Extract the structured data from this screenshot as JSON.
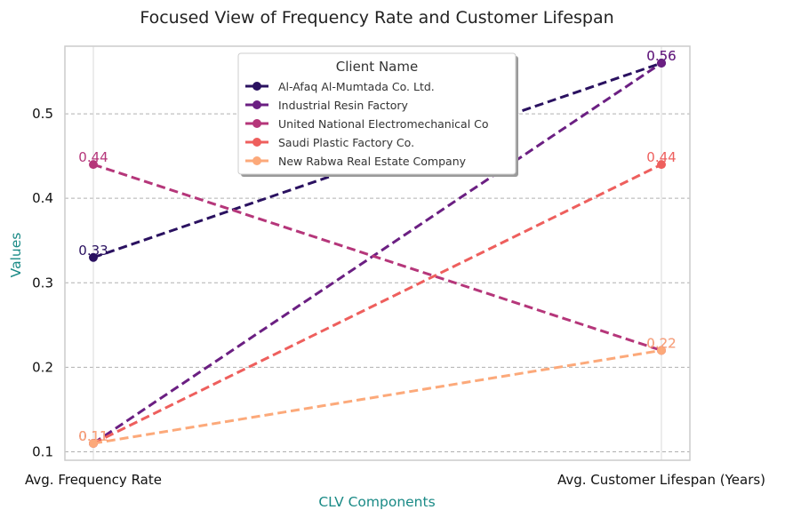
{
  "chart_data": {
    "type": "line",
    "title": "Focused View of Frequency Rate and Customer Lifespan",
    "xlabel": "CLV Components",
    "ylabel": "Values",
    "categories": [
      "Avg. Frequency Rate",
      "Avg. Customer Lifespan (Years)"
    ],
    "ylim": [
      0.09,
      0.58
    ],
    "yticks": [
      0.1,
      0.2,
      0.3,
      0.4,
      0.5
    ],
    "ytick_labels": [
      "0.1",
      "0.2",
      "0.3",
      "0.4",
      "0.5"
    ],
    "grid": "horizontal dashed",
    "legend_title": "Client Name",
    "legend_position": "top-center",
    "series": [
      {
        "name": "Al-Afaq Al-Mumtada Co. Ltd.",
        "values": [
          0.33,
          0.56
        ],
        "labels": [
          "0.33",
          "0.56"
        ],
        "color": "#2a1160"
      },
      {
        "name": "Industrial Resin Factory",
        "values": [
          0.11,
          0.56
        ],
        "labels": [
          "0.11",
          "0.56"
        ],
        "color": "#6b1f82"
      },
      {
        "name": "United National Electromechanical Co",
        "values": [
          0.44,
          0.22
        ],
        "labels": [
          "0.44",
          "0.22"
        ],
        "color": "#b5367a"
      },
      {
        "name": "Saudi Plastic Factory Co.",
        "values": [
          0.11,
          0.44
        ],
        "labels": [
          "0.11",
          "0.44"
        ],
        "color": "#ee5f5d"
      },
      {
        "name": "New Rabwa Real Estate Company",
        "values": [
          0.11,
          0.22
        ],
        "labels": [
          "0.11",
          "0.22"
        ],
        "color": "#fca97a"
      }
    ]
  },
  "colors": {
    "axis_label": "#1a8a86",
    "grid": "#b0b0b0",
    "frame": "#cccccc"
  }
}
